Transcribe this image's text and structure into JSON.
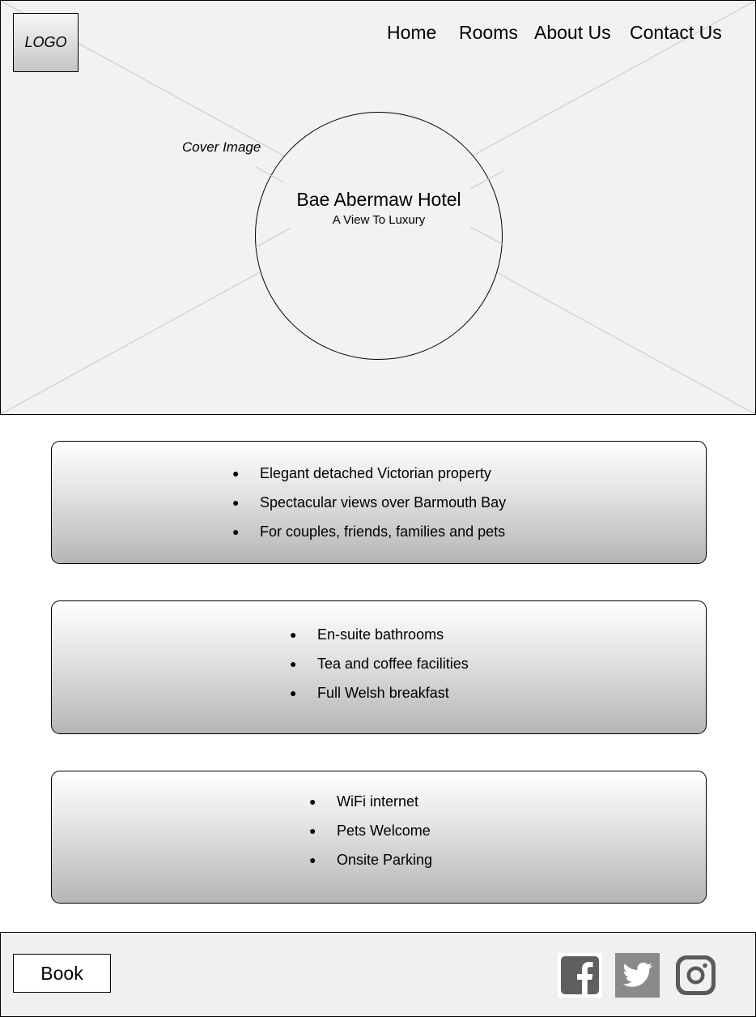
{
  "header": {
    "logo_label": "LOGO",
    "nav": [
      {
        "label": "Home"
      },
      {
        "label": "Rooms"
      },
      {
        "label": "About Us"
      },
      {
        "label": "Contact Us"
      }
    ]
  },
  "hero": {
    "cover_label": "Cover Image",
    "title": "Bae Abermaw Hotel",
    "subtitle": "A View To Luxury"
  },
  "panels": [
    {
      "items": [
        "Elegant detached Victorian property",
        "Spectacular views over Barmouth Bay",
        "For couples, friends, families and pets"
      ]
    },
    {
      "items": [
        "En-suite bathrooms",
        "Tea and coffee facilities",
        "Full Welsh breakfast"
      ]
    },
    {
      "items": [
        "WiFi internet",
        "Pets Welcome",
        "Onsite Parking"
      ]
    }
  ],
  "footer": {
    "book_label": "Book",
    "social": [
      {
        "icon": "facebook-icon"
      },
      {
        "icon": "twitter-icon"
      },
      {
        "icon": "instagram-icon"
      }
    ]
  },
  "colors": {
    "hero_bg": "#f2f2f2",
    "placeholder_line": "#c8c8c8",
    "icon_gray": "#6a6a6a"
  }
}
